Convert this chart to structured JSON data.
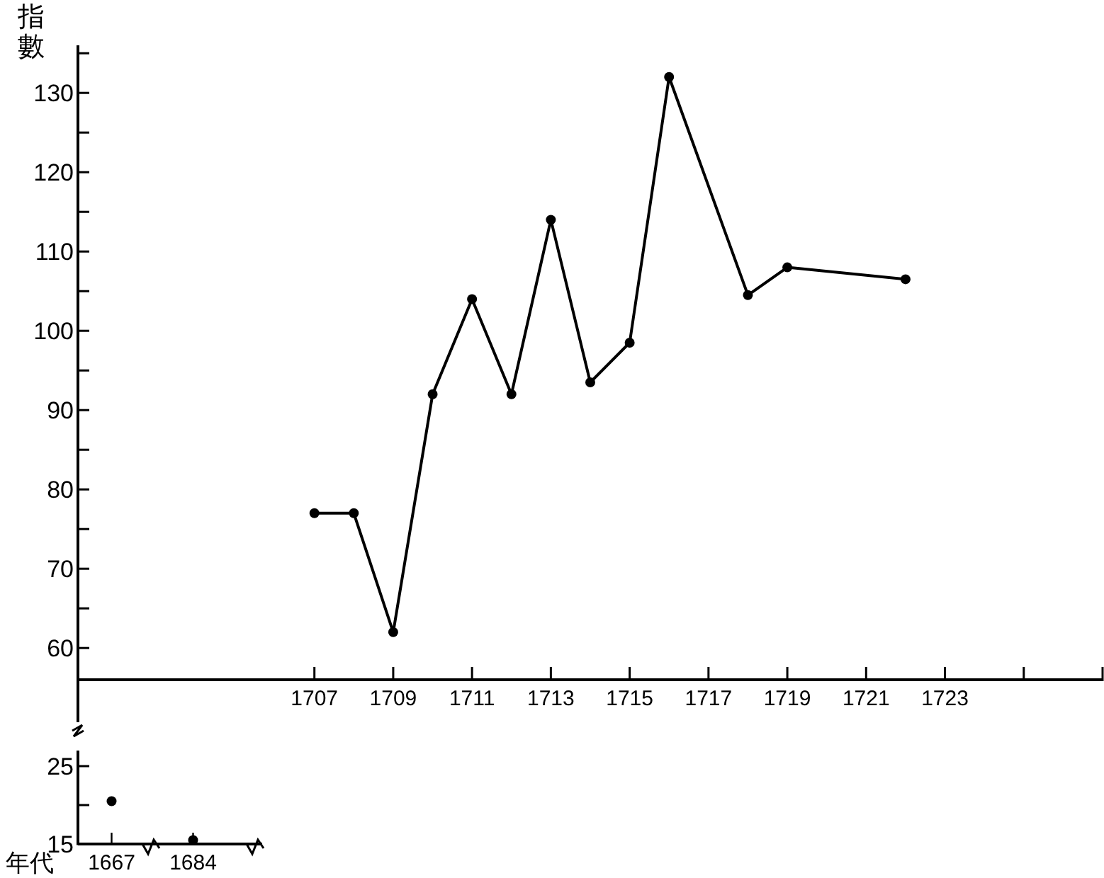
{
  "chart_data": [
    {
      "type": "scatter",
      "categories": [
        "1667",
        "1684"
      ],
      "values": [
        20.5,
        15.5
      ],
      "color": "#000000",
      "ylim": [
        15,
        27
      ],
      "yticks": [
        15,
        {
          "value": 20,
          "label": null
        },
        25
      ],
      "xlabel": "年代",
      "marker": "circle"
    },
    {
      "type": "line",
      "ylabel": "指數",
      "x": [
        1707,
        1708,
        1709,
        1710,
        1711,
        1712,
        1713,
        1714,
        1715,
        1716,
        1718,
        1719,
        1722
      ],
      "values": [
        77,
        77,
        62,
        92,
        104,
        92,
        114,
        93.5,
        98.5,
        132,
        104.5,
        108,
        106.5
      ],
      "color": "#000000",
      "xlim": [
        1701,
        1727
      ],
      "xticks": [
        1707,
        1709,
        1711,
        1713,
        1715,
        1717,
        1719,
        1721,
        1723,
        {
          "value": 1725,
          "label": null
        },
        {
          "value": 1727,
          "label": null
        }
      ],
      "ylim": [
        56,
        136
      ],
      "yticks": [
        60,
        {
          "value": 65,
          "label": null
        },
        70,
        {
          "value": 75,
          "label": null
        },
        80,
        {
          "value": 85,
          "label": null
        },
        90,
        {
          "value": 95,
          "label": null
        },
        100,
        {
          "value": 105,
          "label": null
        },
        110,
        {
          "value": 115,
          "label": null
        },
        120,
        {
          "value": 125,
          "label": null
        },
        130,
        {
          "value": 135,
          "label": null
        }
      ],
      "marker": "circle",
      "line_style": "solid"
    }
  ]
}
